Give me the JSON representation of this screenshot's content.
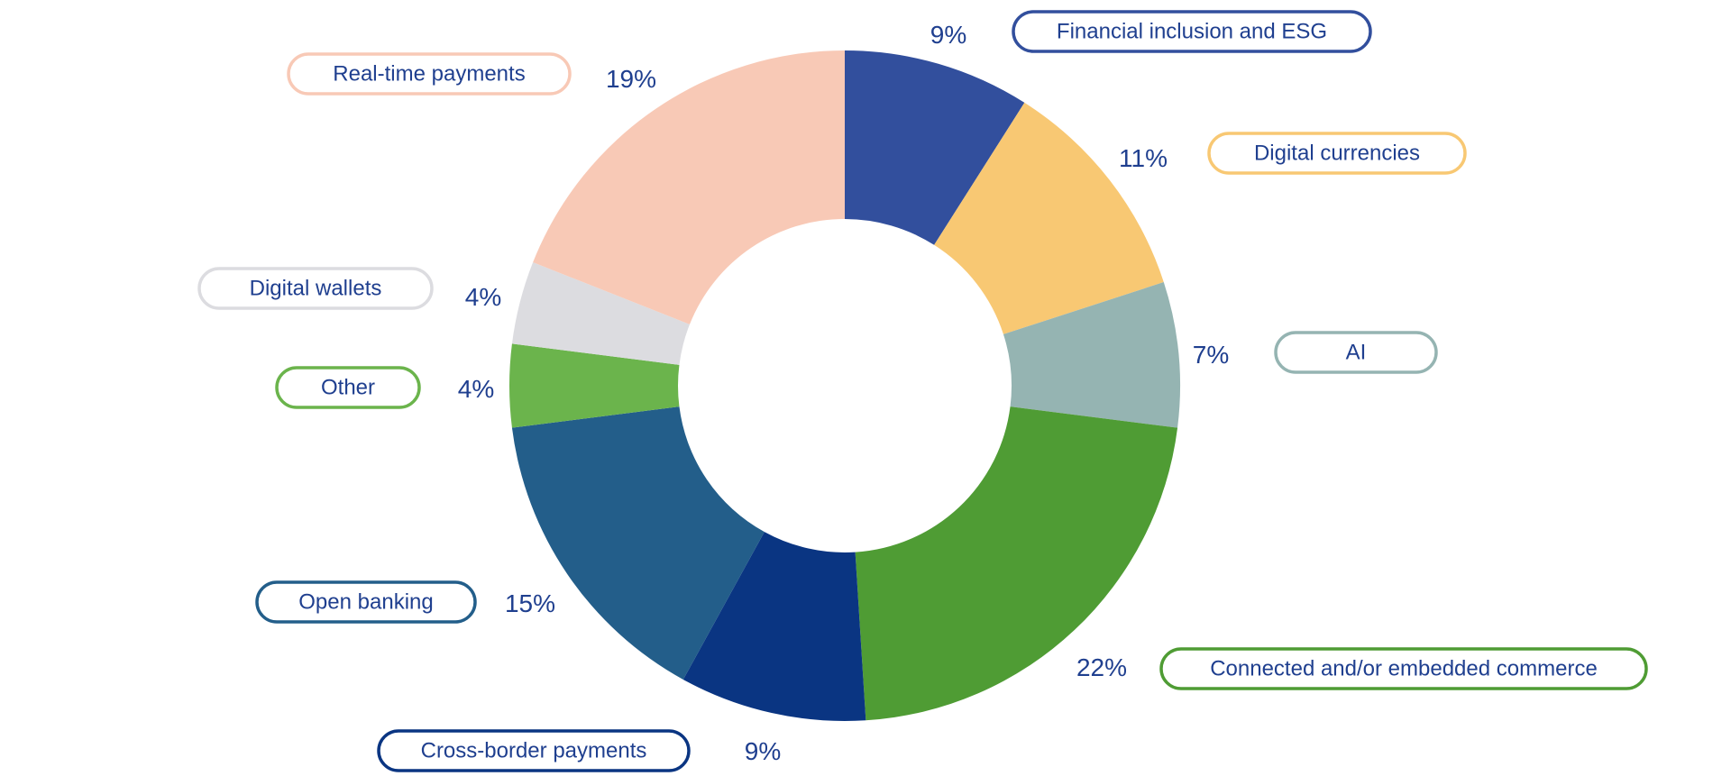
{
  "chart_data": {
    "type": "pie",
    "variant": "donut",
    "start_angle_deg": 0,
    "direction": "clockwise",
    "label_color": "#1f3f8f",
    "slices": [
      {
        "label": "Financial inclusion and ESG",
        "value": 9,
        "display": "9%",
        "color": "#324f9d"
      },
      {
        "label": "Digital currencies",
        "value": 11,
        "display": "11%",
        "color": "#f8c873"
      },
      {
        "label": "AI",
        "value": 7,
        "display": "7%",
        "color": "#95b4b2"
      },
      {
        "label": "Connected and/or embedded commerce",
        "value": 22,
        "display": "22%",
        "color": "#4f9c34"
      },
      {
        "label": "Cross-border payments",
        "value": 9,
        "display": "9%",
        "color": "#0a3582"
      },
      {
        "label": "Open banking",
        "value": 15,
        "display": "15%",
        "color": "#235e8a"
      },
      {
        "label": "Other",
        "value": 4,
        "display": "4%",
        "color": "#6bb44c"
      },
      {
        "label": "Digital wallets",
        "value": 4,
        "display": "4%",
        "color": "#dcdce0"
      },
      {
        "label": "Real-time payments",
        "value": 19,
        "display": "19%",
        "color": "#f8c9b6"
      }
    ]
  }
}
